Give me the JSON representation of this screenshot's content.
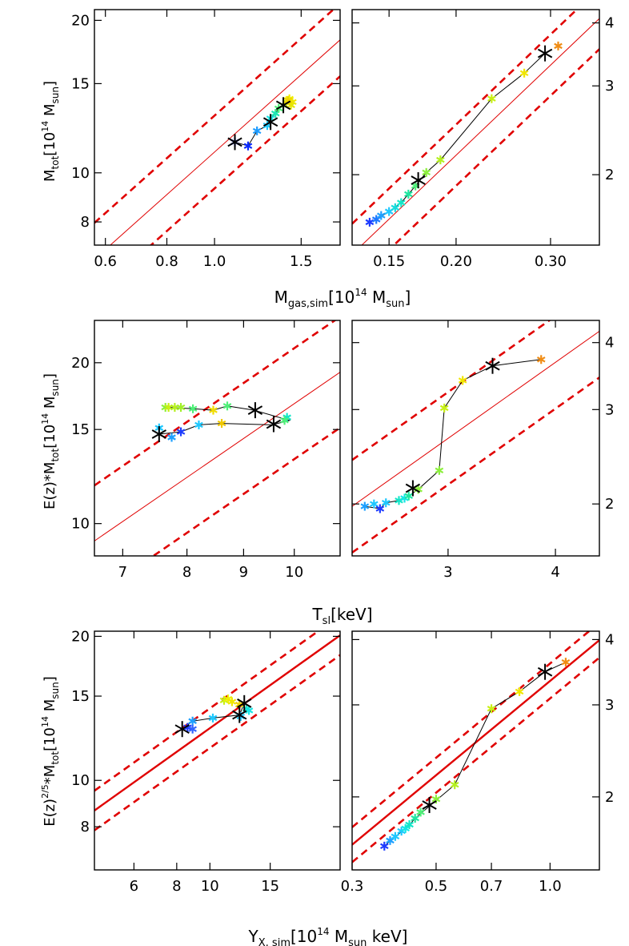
{
  "figure": {
    "x_labels": {
      "row1": {
        "main": "M",
        "sub": "gas,sim",
        "rest": "[10",
        "sup": "14",
        "unit": " M",
        "unit_sub": "sun",
        "close": "]"
      },
      "row2": {
        "main": "T",
        "sub": "sl",
        "rest": "[keV]"
      },
      "row3": {
        "main": "Y",
        "sub": "X, sim",
        "rest": "[10",
        "sup": "14",
        "unit": " M",
        "unit_sub": "sun",
        "close": " keV]"
      }
    },
    "y_labels": {
      "row1": {
        "prefix": "",
        "main": "M",
        "sub": "tot",
        "rest": "[10",
        "sup": "14",
        "unit": " M",
        "unit_sub": "sun",
        "close": "]"
      },
      "row2": {
        "prefix": "E(z)*",
        "main": "M",
        "sub": "tot",
        "rest": "[10",
        "sup": "14",
        "unit": " M",
        "unit_sub": "sun",
        "close": "]"
      },
      "row3": {
        "prefix": "E(z)",
        "prefix_sup": "2/5",
        "mid": "*",
        "main": "M",
        "sub": "tot",
        "rest": "[10",
        "sup": "14",
        "unit": " M",
        "unit_sub": "sun",
        "close": "]"
      }
    }
  },
  "chart_data": [
    {
      "id": "p11",
      "type": "scatter",
      "scale": "log-log",
      "xlim": [
        0.57,
        1.8
      ],
      "ylim": [
        7.2,
        21.0
      ],
      "xticks": [
        {
          "v": 0.6,
          "l": "0.6"
        },
        {
          "v": 0.8,
          "l": "0.8"
        },
        {
          "v": 1.0,
          "l": "1.0"
        },
        {
          "v": 1.5,
          "l": "1.5"
        }
      ],
      "yticks": [
        {
          "v": 8,
          "l": "8"
        },
        {
          "v": 10,
          "l": "10"
        },
        {
          "v": 15,
          "l": "15"
        },
        {
          "v": 20,
          "l": "20"
        }
      ],
      "relation": {
        "x0": 0.57,
        "y0": 6.75,
        "x1": 1.8,
        "y1": 18.3,
        "scatter_factor": 1.18,
        "thick": false
      },
      "points": [
        [
          1.1,
          11.5
        ],
        [
          1.17,
          11.3
        ],
        [
          1.22,
          12.1
        ],
        [
          1.28,
          12.4
        ],
        [
          1.3,
          12.8
        ],
        [
          1.33,
          13.1
        ],
        [
          1.35,
          13.4
        ],
        [
          1.38,
          13.6
        ],
        [
          1.4,
          13.8
        ],
        [
          1.42,
          14.0
        ],
        [
          1.44,
          13.8
        ],
        [
          1.43,
          13.6
        ],
        [
          1.41,
          13.9
        ]
      ],
      "colors": [
        "#1e3cff",
        "#0a2aff",
        "#1e9cff",
        "#1ec8ff",
        "#14e6e6",
        "#1ee6b4",
        "#4ef078",
        "#8cf03c",
        "#c8f014",
        "#f0f000",
        "#f0e600",
        "#e6e600",
        "#f0d200"
      ],
      "track": [
        [
          1.1,
          11.5
        ],
        [
          1.17,
          11.3
        ],
        [
          1.22,
          12.1
        ],
        [
          1.28,
          12.4
        ],
        [
          1.3,
          12.8
        ],
        [
          1.33,
          13.1
        ],
        [
          1.35,
          13.4
        ],
        [
          1.38,
          13.6
        ]
      ],
      "markers": [
        [
          1.1,
          11.5
        ],
        [
          1.3,
          12.6
        ],
        [
          1.38,
          13.6
        ]
      ]
    },
    {
      "id": "p12",
      "type": "scatter",
      "scale": "log-log",
      "xlim": [
        0.128,
        0.37
      ],
      "ylim": [
        1.45,
        4.25
      ],
      "xticks": [
        {
          "v": 0.15,
          "l": "0.15"
        },
        {
          "v": 0.2,
          "l": "0.20"
        },
        {
          "v": 0.3,
          "l": "0.30"
        }
      ],
      "yticks": [
        {
          "v": 2,
          "l": "2"
        },
        {
          "v": 3,
          "l": "3"
        },
        {
          "v": 4,
          "l": "4"
        }
      ],
      "yticks_side": "right",
      "relation": {
        "x0": 0.128,
        "y0": 1.39,
        "x1": 0.37,
        "y1": 4.08,
        "scatter_factor": 1.15,
        "thick": false
      },
      "points": [
        [
          0.138,
          1.61
        ],
        [
          0.142,
          1.63
        ],
        [
          0.145,
          1.66
        ],
        [
          0.15,
          1.69
        ],
        [
          0.154,
          1.72
        ],
        [
          0.158,
          1.76
        ],
        [
          0.163,
          1.83
        ],
        [
          0.168,
          1.9
        ],
        [
          0.176,
          2.02
        ],
        [
          0.187,
          2.14
        ],
        [
          0.233,
          2.83
        ],
        [
          0.268,
          3.18
        ],
        [
          0.31,
          3.6
        ]
      ],
      "colors": [
        "#1e3cff",
        "#1e78ff",
        "#1ea0ff",
        "#1ec8ff",
        "#14dcdc",
        "#14e6c8",
        "#1ee6a0",
        "#4ef078",
        "#8cf03c",
        "#b4f01e",
        "#c8f014",
        "#f0e600",
        "#f08c14"
      ],
      "track": [
        [
          0.142,
          1.63
        ],
        [
          0.15,
          1.69
        ],
        [
          0.158,
          1.76
        ],
        [
          0.168,
          1.9
        ],
        [
          0.176,
          2.02
        ],
        [
          0.187,
          2.14
        ],
        [
          0.233,
          2.83
        ],
        [
          0.268,
          3.18
        ],
        [
          0.293,
          3.48
        ]
      ],
      "markers": [
        [
          0.17,
          1.95
        ],
        [
          0.293,
          3.48
        ]
      ]
    },
    {
      "id": "p21",
      "type": "scatter",
      "scale": "log-log",
      "xlim": [
        6.6,
        11.0
      ],
      "ylim": [
        8.7,
        24.0
      ],
      "xticks": [
        {
          "v": 7,
          "l": "7"
        },
        {
          "v": 8,
          "l": "8"
        },
        {
          "v": 9,
          "l": "9"
        },
        {
          "v": 10,
          "l": "10"
        }
      ],
      "yticks": [
        {
          "v": 10,
          "l": "10"
        },
        {
          "v": 15,
          "l": "15"
        },
        {
          "v": 20,
          "l": "20"
        }
      ],
      "relation": {
        "x0": 6.6,
        "y0": 9.28,
        "x1": 11.0,
        "y1": 19.2,
        "scatter_factor": 1.27,
        "thick": false
      },
      "points": [
        [
          7.55,
          15.1
        ],
        [
          7.75,
          14.5
        ],
        [
          7.9,
          14.85
        ],
        [
          8.2,
          15.3
        ],
        [
          8.6,
          15.4
        ],
        [
          9.85,
          15.8
        ],
        [
          9.8,
          15.6
        ],
        [
          7.65,
          16.5
        ],
        [
          7.7,
          16.5
        ],
        [
          7.8,
          16.5
        ],
        [
          7.9,
          16.5
        ],
        [
          8.1,
          16.4
        ],
        [
          8.45,
          16.3
        ],
        [
          8.7,
          16.6
        ]
      ],
      "colors": [
        "#1ec8ff",
        "#1ea0ff",
        "#1e3cff",
        "#1ec8ff",
        "#f0c800",
        "#14e6c8",
        "#4ef078",
        "#8cf03c",
        "#c8f014",
        "#b4f01e",
        "#a0f028",
        "#4ef078",
        "#f0dc00",
        "#4ef078"
      ],
      "track": [
        [
          7.55,
          14.7
        ],
        [
          7.9,
          14.85
        ],
        [
          8.2,
          15.3
        ],
        [
          8.6,
          15.4
        ],
        [
          9.55,
          15.3
        ],
        [
          9.9,
          15.6
        ],
        [
          9.2,
          16.3
        ],
        [
          8.7,
          16.6
        ],
        [
          8.45,
          16.3
        ],
        [
          8.1,
          16.4
        ],
        [
          7.7,
          16.5
        ]
      ],
      "markers": [
        [
          7.55,
          14.7
        ],
        [
          9.22,
          16.3
        ],
        [
          9.58,
          15.35
        ]
      ]
    },
    {
      "id": "p22",
      "type": "scatter",
      "scale": "log-log",
      "xlim": [
        2.32,
        4.5
      ],
      "ylim": [
        1.6,
        4.4
      ],
      "xticks": [
        {
          "v": 3,
          "l": "3"
        },
        {
          "v": 4,
          "l": "4"
        }
      ],
      "yticks": [
        {
          "v": 2,
          "l": "2"
        },
        {
          "v": 3,
          "l": "3"
        },
        {
          "v": 4,
          "l": "4"
        }
      ],
      "yticks_side": "right",
      "relation": {
        "x0": 2.32,
        "y0": 1.98,
        "x1": 4.5,
        "y1": 4.2,
        "scatter_factor": 1.22,
        "thick": false
      },
      "points": [
        [
          2.4,
          1.98
        ],
        [
          2.46,
          2.0
        ],
        [
          2.5,
          1.96
        ],
        [
          2.54,
          2.01
        ],
        [
          2.63,
          2.03
        ],
        [
          2.67,
          2.05
        ],
        [
          2.7,
          2.07
        ],
        [
          2.77,
          2.13
        ],
        [
          2.93,
          2.31
        ],
        [
          2.97,
          3.02
        ],
        [
          3.12,
          3.4
        ],
        [
          3.85,
          3.72
        ]
      ],
      "colors": [
        "#1ea0ff",
        "#1ec8ff",
        "#1e3cff",
        "#1ec8ff",
        "#14e6c8",
        "#14e6e6",
        "#1ee6a0",
        "#8cf03c",
        "#8cf03c",
        "#c8f014",
        "#f0e600",
        "#f08c14"
      ],
      "track": [
        [
          2.4,
          1.98
        ],
        [
          2.5,
          1.96
        ],
        [
          2.54,
          2.01
        ],
        [
          2.63,
          2.03
        ],
        [
          2.7,
          2.07
        ],
        [
          2.77,
          2.13
        ],
        [
          2.93,
          2.31
        ],
        [
          2.97,
          3.02
        ],
        [
          3.12,
          3.4
        ],
        [
          3.38,
          3.62
        ],
        [
          3.85,
          3.72
        ]
      ],
      "markers": [
        [
          2.73,
          2.14
        ],
        [
          3.38,
          3.62
        ]
      ]
    },
    {
      "id": "p31",
      "type": "scatter",
      "scale": "log-log",
      "xlim": [
        4.6,
        24.0
      ],
      "ylim": [
        6.5,
        20.5
      ],
      "xticks": [
        {
          "v": 6,
          "l": "6"
        },
        {
          "v": 8,
          "l": "8"
        },
        {
          "v": 10,
          "l": "10"
        },
        {
          "v": 15,
          "l": "15"
        }
      ],
      "yticks": [
        {
          "v": 8,
          "l": "8"
        },
        {
          "v": 10,
          "l": "10"
        },
        {
          "v": 15,
          "l": "15"
        },
        {
          "v": 20,
          "l": "20"
        }
      ],
      "relation": {
        "x0": 4.6,
        "y0": 8.65,
        "x1": 24.0,
        "y1": 20.1,
        "scatter_factor": 1.1,
        "thick": true
      },
      "points": [
        [
          8.6,
          12.9
        ],
        [
          8.9,
          13.3
        ],
        [
          10.2,
          13.5
        ],
        [
          11.0,
          14.7
        ],
        [
          11.3,
          14.8
        ],
        [
          11.6,
          14.6
        ],
        [
          12.2,
          14.4
        ],
        [
          12.8,
          14.1
        ],
        [
          13.0,
          14.0
        ],
        [
          12.3,
          13.6
        ],
        [
          8.9,
          12.8
        ]
      ],
      "colors": [
        "#1e3cff",
        "#1ea0ff",
        "#1ec8ff",
        "#c8f014",
        "#f0f000",
        "#f0e600",
        "#f0d200",
        "#14e6c8",
        "#14e6e6",
        "#1ec8ff",
        "#3264ff"
      ],
      "track": [
        [
          8.3,
          12.8
        ],
        [
          8.9,
          13.3
        ],
        [
          10.2,
          13.5
        ],
        [
          12.2,
          13.7
        ],
        [
          12.6,
          14.5
        ]
      ],
      "markers": [
        [
          8.3,
          12.8
        ],
        [
          12.2,
          13.7
        ],
        [
          12.6,
          14.5
        ]
      ]
    },
    {
      "id": "p32",
      "type": "scatter",
      "scale": "log-log",
      "xlim": [
        0.3,
        1.35
      ],
      "ylim": [
        1.45,
        4.15
      ],
      "xticks": [
        {
          "v": 0.3,
          "l": "0.3"
        },
        {
          "v": 0.5,
          "l": "0.5"
        },
        {
          "v": 0.7,
          "l": "0.7"
        },
        {
          "v": 1.0,
          "l": "1.0"
        }
      ],
      "yticks": [
        {
          "v": 2,
          "l": "2"
        },
        {
          "v": 3,
          "l": "3"
        },
        {
          "v": 4,
          "l": "4"
        }
      ],
      "yticks_side": "right",
      "relation": {
        "x0": 0.3,
        "y0": 1.62,
        "x1": 1.35,
        "y1": 3.99,
        "scatter_factor": 1.08,
        "thick": true
      },
      "points": [
        [
          0.365,
          1.61
        ],
        [
          0.378,
          1.65
        ],
        [
          0.39,
          1.68
        ],
        [
          0.405,
          1.72
        ],
        [
          0.415,
          1.74
        ],
        [
          0.425,
          1.77
        ],
        [
          0.44,
          1.82
        ],
        [
          0.455,
          1.87
        ],
        [
          0.5,
          1.98
        ],
        [
          0.56,
          2.11
        ],
        [
          0.7,
          2.95
        ],
        [
          0.83,
          3.18
        ],
        [
          1.1,
          3.62
        ]
      ],
      "colors": [
        "#1e3cff",
        "#1ea0ff",
        "#1ec8ff",
        "#1ec8ff",
        "#14e6e6",
        "#14e6c8",
        "#1ee6a0",
        "#4ef078",
        "#8cf03c",
        "#b4f01e",
        "#c8f014",
        "#f0e600",
        "#f08c14"
      ],
      "track": [
        [
          0.365,
          1.61
        ],
        [
          0.39,
          1.68
        ],
        [
          0.42,
          1.75
        ],
        [
          0.44,
          1.82
        ],
        [
          0.48,
          1.92
        ],
        [
          0.56,
          2.11
        ],
        [
          0.7,
          2.95
        ],
        [
          0.83,
          3.18
        ],
        [
          0.97,
          3.47
        ],
        [
          1.1,
          3.62
        ]
      ],
      "markers": [
        [
          0.48,
          1.93
        ],
        [
          0.97,
          3.47
        ]
      ]
    }
  ]
}
